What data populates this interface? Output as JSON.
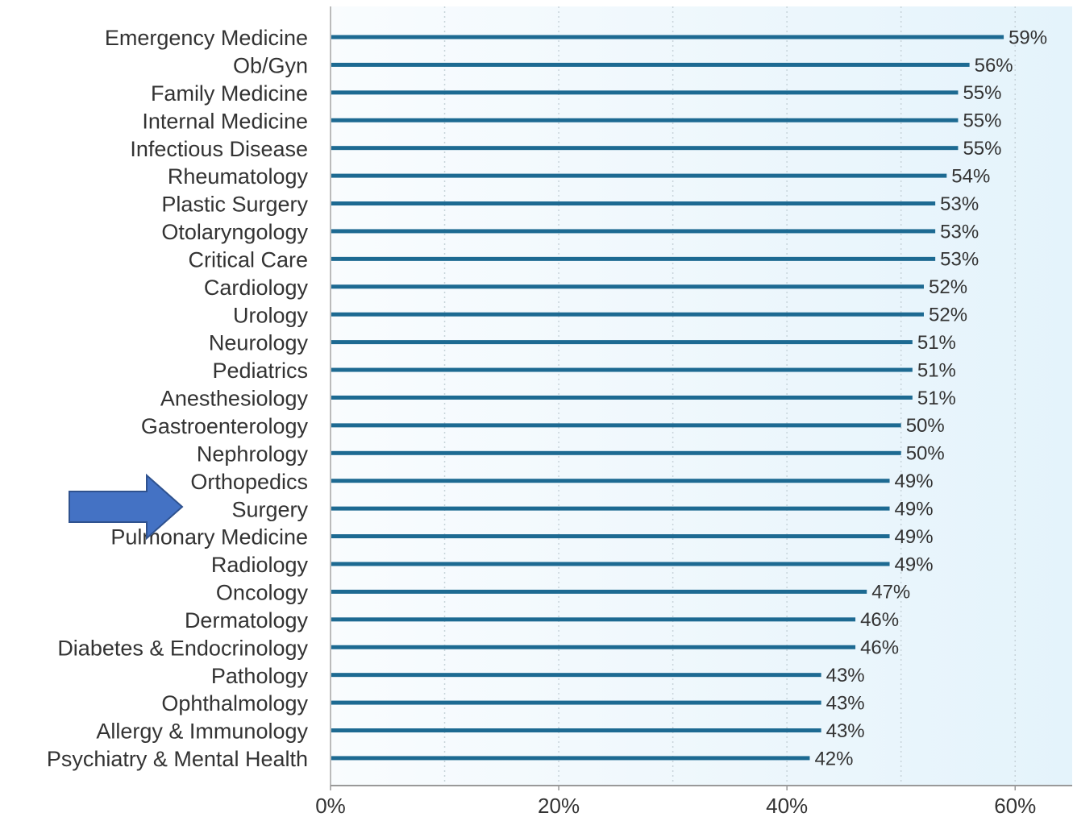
{
  "chart_data": {
    "type": "hbar",
    "categories": [
      "Emergency Medicine",
      "Ob/Gyn",
      "Family Medicine",
      "Internal Medicine",
      "Infectious Disease",
      "Rheumatology",
      "Plastic Surgery",
      "Otolaryngology",
      "Critical Care",
      "Cardiology",
      "Urology",
      "Neurology",
      "Pediatrics",
      "Anesthesiology",
      "Gastroenterology",
      "Nephrology",
      "Orthopedics",
      "Surgery",
      "Pulmonary Medicine",
      "Radiology",
      "Oncology",
      "Dermatology",
      "Diabetes & Endocrinology",
      "Pathology",
      "Ophthalmology",
      "Allergy & Immunology",
      "Psychiatry & Mental Health"
    ],
    "values": [
      59,
      56,
      55,
      55,
      55,
      54,
      53,
      53,
      53,
      52,
      52,
      51,
      51,
      51,
      50,
      50,
      49,
      49,
      49,
      49,
      47,
      46,
      46,
      43,
      43,
      43,
      42
    ],
    "value_labels": [
      "59%",
      "56%",
      "55%",
      "55%",
      "55%",
      "54%",
      "53%",
      "53%",
      "53%",
      "52%",
      "52%",
      "51%",
      "51%",
      "51%",
      "50%",
      "50%",
      "49%",
      "49%",
      "49%",
      "49%",
      "47%",
      "46%",
      "46%",
      "43%",
      "43%",
      "43%",
      "42%"
    ],
    "color": "#1d6a92",
    "xlim": [
      0,
      65
    ],
    "xticks": [
      {
        "value": 0,
        "label": "0%"
      },
      {
        "value": 20,
        "label": "20%"
      },
      {
        "value": 40,
        "label": "40%"
      },
      {
        "value": 60,
        "label": "60%"
      }
    ],
    "xgrid": [
      10,
      20,
      30,
      40,
      50,
      60
    ],
    "grid": true
  }
}
